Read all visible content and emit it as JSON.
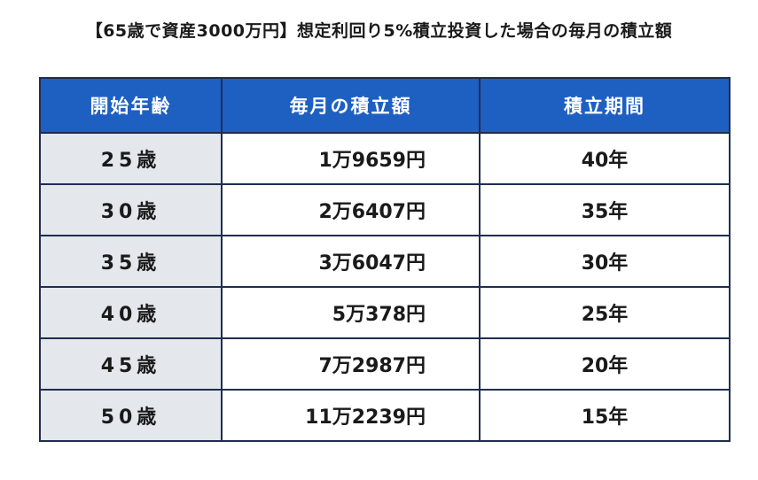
{
  "title": "【65歳で資産3000万円】想定利回り5%積立投資した場合の毎月の積立額",
  "table": {
    "headers": [
      "開始年齢",
      "毎月の積立額",
      "積立期間"
    ],
    "rows": [
      {
        "age": "25歳",
        "monthly": "1万9659円",
        "period": "40年"
      },
      {
        "age": "30歳",
        "monthly": "2万6407円",
        "period": "35年"
      },
      {
        "age": "35歳",
        "monthly": "3万6047円",
        "period": "30年"
      },
      {
        "age": "40歳",
        "monthly": "5万378円",
        "period": "25年"
      },
      {
        "age": "45歳",
        "monthly": "7万2987円",
        "period": "20年"
      },
      {
        "age": "50歳",
        "monthly": "11万2239円",
        "period": "15年"
      }
    ]
  },
  "colors": {
    "header_bg": "#1e5fc2",
    "age_col_bg": "#e4e7eb",
    "border": "#1f2d4f"
  }
}
